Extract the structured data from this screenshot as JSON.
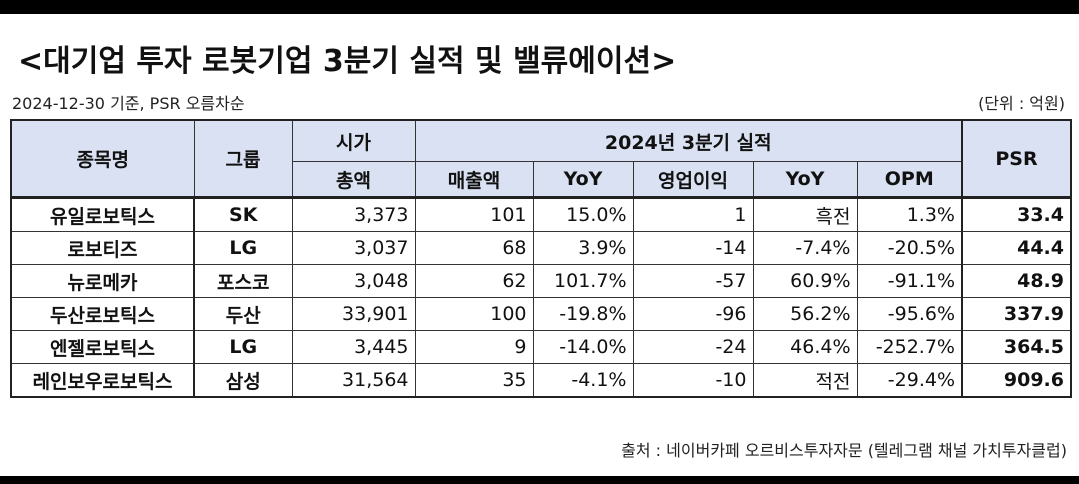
{
  "title": "<대기업 투자 로봇기업 3분기 실적 및 밸류에이션>",
  "subtitle": "2024-12-30 기준, PSR 오름차순",
  "unit": "(단위 : 억원)",
  "source": "출처 : 네이버카페 오르비스투자자문 (텔레그램 채널 가치투자클럽)",
  "table": {
    "headers": {
      "name": "종목명",
      "group": "그룹",
      "mcap_line1": "시가",
      "mcap_line2": "총액",
      "period": "2024년 3분기 실적",
      "psr": "PSR",
      "sub": [
        "매출액",
        "YoY",
        "영업이익",
        "YoY",
        "OPM"
      ]
    },
    "rows": [
      {
        "name": "유일로보틱스",
        "group": "SK",
        "mcap": "3,373",
        "sales": "101",
        "sales_yoy": "15.0%",
        "op": "1",
        "op_yoy": "흑전",
        "opm": "1.3%",
        "psr": "33.4"
      },
      {
        "name": "로보티즈",
        "group": "LG",
        "mcap": "3,037",
        "sales": "68",
        "sales_yoy": "3.9%",
        "op": "-14",
        "op_yoy": "-7.4%",
        "opm": "-20.5%",
        "psr": "44.4"
      },
      {
        "name": "뉴로메카",
        "group": "포스코",
        "mcap": "3,048",
        "sales": "62",
        "sales_yoy": "101.7%",
        "op": "-57",
        "op_yoy": "60.9%",
        "opm": "-91.1%",
        "psr": "48.9"
      },
      {
        "name": "두산로보틱스",
        "group": "두산",
        "mcap": "33,901",
        "sales": "100",
        "sales_yoy": "-19.8%",
        "op": "-96",
        "op_yoy": "56.2%",
        "opm": "-95.6%",
        "psr": "337.9"
      },
      {
        "name": "엔젤로보틱스",
        "group": "LG",
        "mcap": "3,445",
        "sales": "9",
        "sales_yoy": "-14.0%",
        "op": "-24",
        "op_yoy": "46.4%",
        "opm": "-252.7%",
        "psr": "364.5"
      },
      {
        "name": "레인보우로보틱스",
        "group": "삼성",
        "mcap": "31,564",
        "sales": "35",
        "sales_yoy": "-4.1%",
        "op": "-10",
        "op_yoy": "적전",
        "opm": "-29.4%",
        "psr": "909.6"
      }
    ]
  }
}
